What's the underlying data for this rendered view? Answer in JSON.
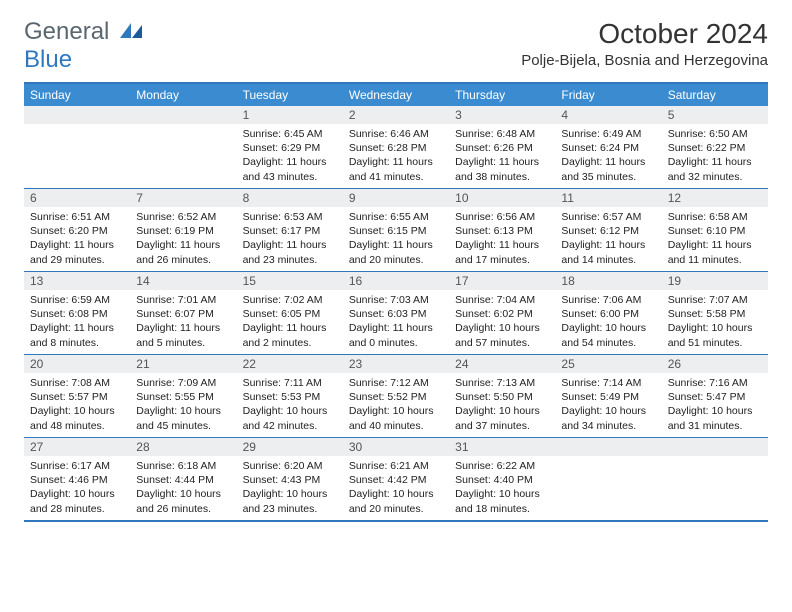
{
  "logo": {
    "text_a": "General",
    "text_b": "Blue"
  },
  "title": "October 2024",
  "location": "Polje-Bijela, Bosnia and Herzegovina",
  "colors": {
    "header_bg": "#3b8bd0",
    "border": "#2f78bd",
    "numrow_bg": "#eceeef",
    "text": "#222222",
    "logo_gray": "#5a6770",
    "logo_blue": "#2f78bd"
  },
  "daynames": [
    "Sunday",
    "Monday",
    "Tuesday",
    "Wednesday",
    "Thursday",
    "Friday",
    "Saturday"
  ],
  "weeks": [
    [
      null,
      null,
      {
        "n": "1",
        "sr": "Sunrise: 6:45 AM",
        "ss": "Sunset: 6:29 PM",
        "d1": "Daylight: 11 hours",
        "d2": "and 43 minutes."
      },
      {
        "n": "2",
        "sr": "Sunrise: 6:46 AM",
        "ss": "Sunset: 6:28 PM",
        "d1": "Daylight: 11 hours",
        "d2": "and 41 minutes."
      },
      {
        "n": "3",
        "sr": "Sunrise: 6:48 AM",
        "ss": "Sunset: 6:26 PM",
        "d1": "Daylight: 11 hours",
        "d2": "and 38 minutes."
      },
      {
        "n": "4",
        "sr": "Sunrise: 6:49 AM",
        "ss": "Sunset: 6:24 PM",
        "d1": "Daylight: 11 hours",
        "d2": "and 35 minutes."
      },
      {
        "n": "5",
        "sr": "Sunrise: 6:50 AM",
        "ss": "Sunset: 6:22 PM",
        "d1": "Daylight: 11 hours",
        "d2": "and 32 minutes."
      }
    ],
    [
      {
        "n": "6",
        "sr": "Sunrise: 6:51 AM",
        "ss": "Sunset: 6:20 PM",
        "d1": "Daylight: 11 hours",
        "d2": "and 29 minutes."
      },
      {
        "n": "7",
        "sr": "Sunrise: 6:52 AM",
        "ss": "Sunset: 6:19 PM",
        "d1": "Daylight: 11 hours",
        "d2": "and 26 minutes."
      },
      {
        "n": "8",
        "sr": "Sunrise: 6:53 AM",
        "ss": "Sunset: 6:17 PM",
        "d1": "Daylight: 11 hours",
        "d2": "and 23 minutes."
      },
      {
        "n": "9",
        "sr": "Sunrise: 6:55 AM",
        "ss": "Sunset: 6:15 PM",
        "d1": "Daylight: 11 hours",
        "d2": "and 20 minutes."
      },
      {
        "n": "10",
        "sr": "Sunrise: 6:56 AM",
        "ss": "Sunset: 6:13 PM",
        "d1": "Daylight: 11 hours",
        "d2": "and 17 minutes."
      },
      {
        "n": "11",
        "sr": "Sunrise: 6:57 AM",
        "ss": "Sunset: 6:12 PM",
        "d1": "Daylight: 11 hours",
        "d2": "and 14 minutes."
      },
      {
        "n": "12",
        "sr": "Sunrise: 6:58 AM",
        "ss": "Sunset: 6:10 PM",
        "d1": "Daylight: 11 hours",
        "d2": "and 11 minutes."
      }
    ],
    [
      {
        "n": "13",
        "sr": "Sunrise: 6:59 AM",
        "ss": "Sunset: 6:08 PM",
        "d1": "Daylight: 11 hours",
        "d2": "and 8 minutes."
      },
      {
        "n": "14",
        "sr": "Sunrise: 7:01 AM",
        "ss": "Sunset: 6:07 PM",
        "d1": "Daylight: 11 hours",
        "d2": "and 5 minutes."
      },
      {
        "n": "15",
        "sr": "Sunrise: 7:02 AM",
        "ss": "Sunset: 6:05 PM",
        "d1": "Daylight: 11 hours",
        "d2": "and 2 minutes."
      },
      {
        "n": "16",
        "sr": "Sunrise: 7:03 AM",
        "ss": "Sunset: 6:03 PM",
        "d1": "Daylight: 11 hours",
        "d2": "and 0 minutes."
      },
      {
        "n": "17",
        "sr": "Sunrise: 7:04 AM",
        "ss": "Sunset: 6:02 PM",
        "d1": "Daylight: 10 hours",
        "d2": "and 57 minutes."
      },
      {
        "n": "18",
        "sr": "Sunrise: 7:06 AM",
        "ss": "Sunset: 6:00 PM",
        "d1": "Daylight: 10 hours",
        "d2": "and 54 minutes."
      },
      {
        "n": "19",
        "sr": "Sunrise: 7:07 AM",
        "ss": "Sunset: 5:58 PM",
        "d1": "Daylight: 10 hours",
        "d2": "and 51 minutes."
      }
    ],
    [
      {
        "n": "20",
        "sr": "Sunrise: 7:08 AM",
        "ss": "Sunset: 5:57 PM",
        "d1": "Daylight: 10 hours",
        "d2": "and 48 minutes."
      },
      {
        "n": "21",
        "sr": "Sunrise: 7:09 AM",
        "ss": "Sunset: 5:55 PM",
        "d1": "Daylight: 10 hours",
        "d2": "and 45 minutes."
      },
      {
        "n": "22",
        "sr": "Sunrise: 7:11 AM",
        "ss": "Sunset: 5:53 PM",
        "d1": "Daylight: 10 hours",
        "d2": "and 42 minutes."
      },
      {
        "n": "23",
        "sr": "Sunrise: 7:12 AM",
        "ss": "Sunset: 5:52 PM",
        "d1": "Daylight: 10 hours",
        "d2": "and 40 minutes."
      },
      {
        "n": "24",
        "sr": "Sunrise: 7:13 AM",
        "ss": "Sunset: 5:50 PM",
        "d1": "Daylight: 10 hours",
        "d2": "and 37 minutes."
      },
      {
        "n": "25",
        "sr": "Sunrise: 7:14 AM",
        "ss": "Sunset: 5:49 PM",
        "d1": "Daylight: 10 hours",
        "d2": "and 34 minutes."
      },
      {
        "n": "26",
        "sr": "Sunrise: 7:16 AM",
        "ss": "Sunset: 5:47 PM",
        "d1": "Daylight: 10 hours",
        "d2": "and 31 minutes."
      }
    ],
    [
      {
        "n": "27",
        "sr": "Sunrise: 6:17 AM",
        "ss": "Sunset: 4:46 PM",
        "d1": "Daylight: 10 hours",
        "d2": "and 28 minutes."
      },
      {
        "n": "28",
        "sr": "Sunrise: 6:18 AM",
        "ss": "Sunset: 4:44 PM",
        "d1": "Daylight: 10 hours",
        "d2": "and 26 minutes."
      },
      {
        "n": "29",
        "sr": "Sunrise: 6:20 AM",
        "ss": "Sunset: 4:43 PM",
        "d1": "Daylight: 10 hours",
        "d2": "and 23 minutes."
      },
      {
        "n": "30",
        "sr": "Sunrise: 6:21 AM",
        "ss": "Sunset: 4:42 PM",
        "d1": "Daylight: 10 hours",
        "d2": "and 20 minutes."
      },
      {
        "n": "31",
        "sr": "Sunrise: 6:22 AM",
        "ss": "Sunset: 4:40 PM",
        "d1": "Daylight: 10 hours",
        "d2": "and 18 minutes."
      },
      null,
      null
    ]
  ]
}
